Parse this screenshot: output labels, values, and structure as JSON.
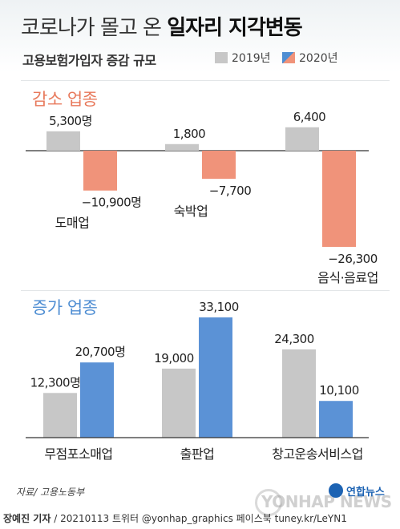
{
  "header": {
    "title_plain": "코로나가 몰고 온 ",
    "title_bold": "일자리 지각변동",
    "subtitle": "고용보험가입자 증감 규모"
  },
  "legend": [
    {
      "label": "2019년",
      "color": "#c7c7c7"
    },
    {
      "label": "2020년",
      "color": "#4f8ed3",
      "color_alt": "#f0937a"
    }
  ],
  "colors": {
    "gray_bar": "#c7c7c7",
    "decrease_2020": "#f0937a",
    "increase_2020": "#5b92d6",
    "decrease_label": "#e8795b",
    "increase_label": "#4f8ed3"
  },
  "chart_data": [
    {
      "type": "bar",
      "title": "감소 업종",
      "categories": [
        "도매업",
        "숙박업",
        "음식·음료업"
      ],
      "series": [
        {
          "name": "2019년",
          "values": [
            5300,
            1800,
            6400
          ]
        },
        {
          "name": "2020년",
          "values": [
            -10900,
            -7700,
            -26300
          ]
        }
      ],
      "value_labels": {
        "2019년": [
          "5,300명",
          "1,800",
          "6,400"
        ],
        "2020년": [
          "−10,900명",
          "−7,700",
          "−26,300"
        ]
      }
    },
    {
      "type": "bar",
      "title": "증가 업종",
      "categories": [
        "무점포소매업",
        "출판업",
        "창고운송서비스업"
      ],
      "series": [
        {
          "name": "2019년",
          "values": [
            12300,
            19000,
            24300
          ]
        },
        {
          "name": "2020년",
          "values": [
            20700,
            33100,
            10100
          ]
        }
      ],
      "value_labels": {
        "2019년": [
          "12,300명",
          "19,000",
          "24,300"
        ],
        "2020년": [
          "20,700명",
          "33,100",
          "10,100"
        ]
      }
    }
  ],
  "footer": {
    "source": "자료/ 고용노동부",
    "reporter": "장예진 기자",
    "credits": " / 20210113 트위터 @yonhap_graphics  페이스북 tuney.kr/LeYN1",
    "logo": "연합뉴스",
    "watermark": "YONHAP NEWS"
  }
}
